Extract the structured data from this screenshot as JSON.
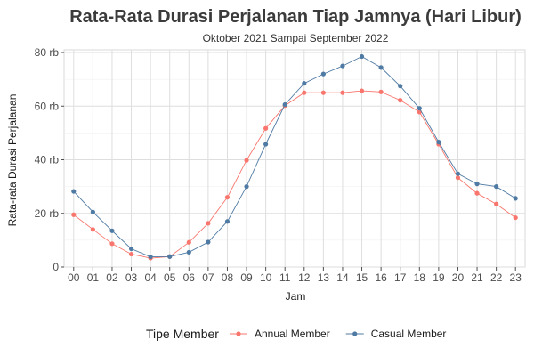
{
  "chart_data": {
    "type": "line",
    "title": "Rata-Rata Durasi Perjalanan Tiap Jamnya (Hari Libur)",
    "subtitle": "Oktober 2021 Sampai September 2022",
    "xlabel": "Jam",
    "ylabel": "Rata-rata Durasi Perjalanan",
    "categories": [
      "00",
      "01",
      "02",
      "03",
      "04",
      "05",
      "06",
      "07",
      "08",
      "09",
      "10",
      "11",
      "12",
      "13",
      "14",
      "15",
      "16",
      "17",
      "18",
      "19",
      "20",
      "21",
      "22",
      "23"
    ],
    "yticks": [
      0,
      20000,
      40000,
      60000,
      80000
    ],
    "ytick_labels": [
      "0",
      "20 rb",
      "40 rb",
      "60 rb",
      "80 rb"
    ],
    "ylim": [
      0,
      81000
    ],
    "grid": true,
    "legend": {
      "title": "Tipe Member",
      "position": "bottom"
    },
    "series": [
      {
        "name": "Annual Member",
        "color": "#f8766d",
        "values": [
          19500,
          14000,
          8700,
          4800,
          3300,
          3900,
          9200,
          16300,
          26000,
          39800,
          51700,
          60200,
          65000,
          65000,
          65000,
          65700,
          65300,
          62200,
          57800,
          45800,
          33300,
          27500,
          23500,
          18400
        ]
      },
      {
        "name": "Casual Member",
        "color": "#4f7aa3",
        "values": [
          28200,
          20500,
          13500,
          6800,
          3800,
          3900,
          5500,
          9300,
          17000,
          30000,
          45800,
          60600,
          68500,
          72000,
          75000,
          78500,
          74400,
          67500,
          59200,
          46600,
          34800,
          31000,
          30000,
          25600
        ]
      }
    ]
  }
}
